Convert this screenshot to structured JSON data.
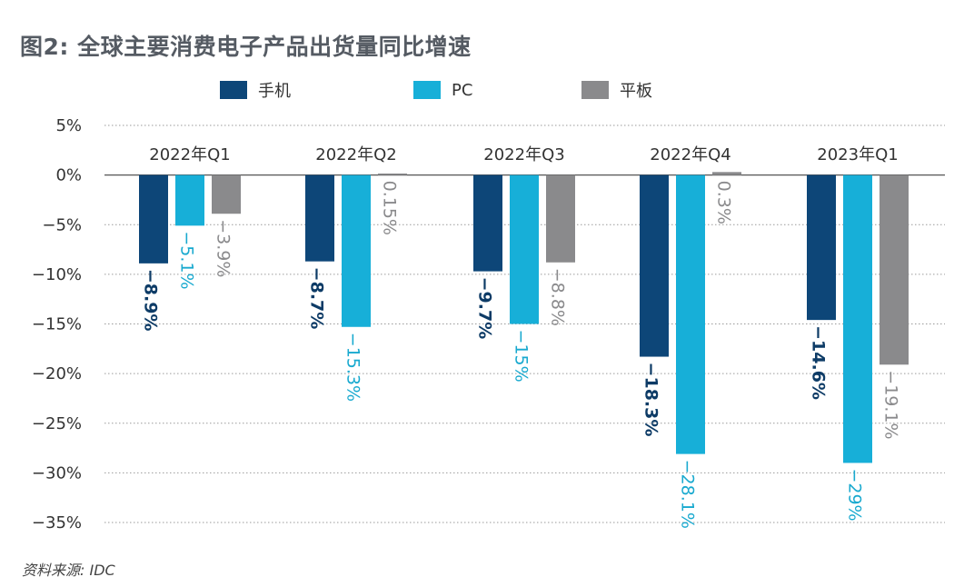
{
  "title": "图2: 全球主要消费电子产品出货量同比增速",
  "source": "资料来源: IDC",
  "colors": {
    "phone": "#0d4678",
    "pc": "#17afd8",
    "tablet": "#8a8a8c"
  },
  "chart_data": {
    "type": "bar",
    "categories": [
      "2022年Q1",
      "2022年Q2",
      "2022年Q3",
      "2022年Q4",
      "2023年Q1"
    ],
    "series": [
      {
        "name": "手机",
        "values": [
          -8.9,
          -8.7,
          -9.7,
          -18.3,
          -14.6
        ],
        "labels": [
          "−8.9%",
          "−8.7%",
          "−9.7%",
          "−18.3%",
          "−14.6%"
        ]
      },
      {
        "name": "PC",
        "values": [
          -5.1,
          -15.3,
          -15,
          -28.1,
          -29
        ],
        "labels": [
          "−5.1%",
          "−15.3%",
          "−15%",
          "−28.1%",
          "−29%"
        ]
      },
      {
        "name": "平板",
        "values": [
          -3.9,
          0.15,
          -8.8,
          0.3,
          -19.1
        ],
        "labels": [
          "−3.9%",
          "0.15%",
          "−8.8%",
          "0.3%",
          "−19.1%"
        ]
      }
    ],
    "yticks": [
      5,
      0,
      -5,
      -10,
      -15,
      -20,
      -25,
      -30,
      -35
    ],
    "ytick_labels": [
      "5%",
      "0%",
      "−5%",
      "−10%",
      "−15%",
      "−20%",
      "−25%",
      "−30%",
      "−35%"
    ],
    "ylim": [
      -35,
      5
    ],
    "grid": true,
    "legend": "top"
  }
}
